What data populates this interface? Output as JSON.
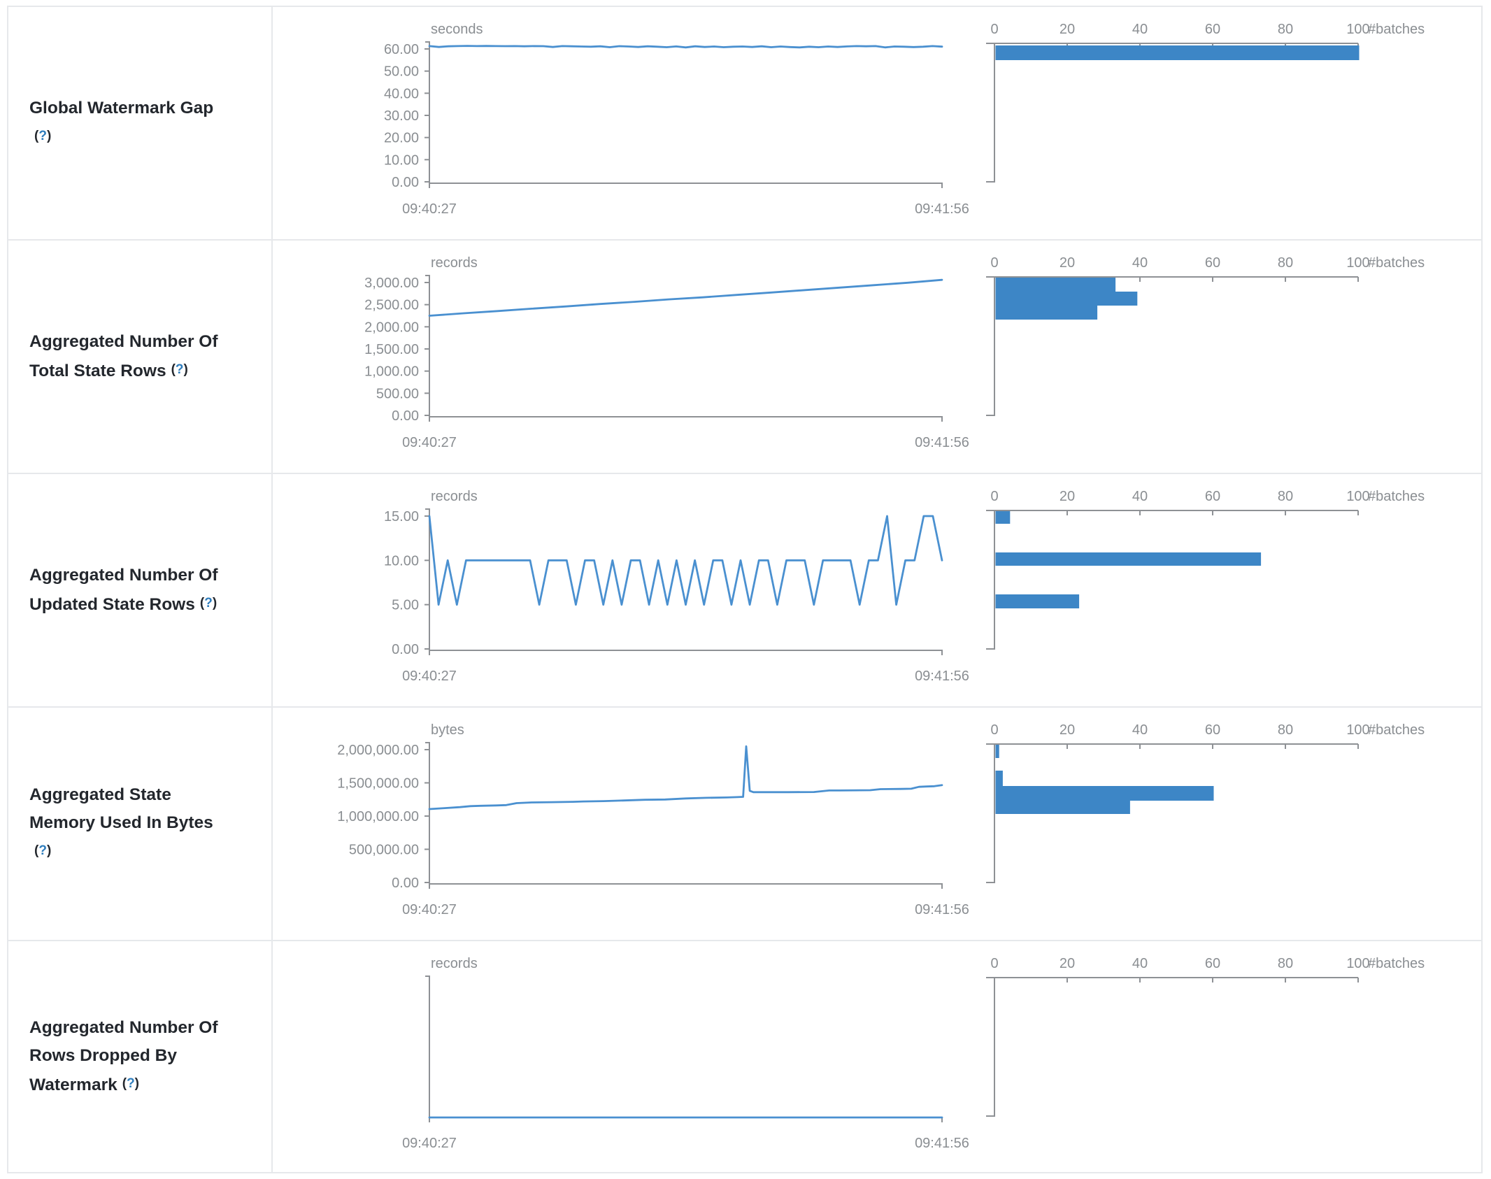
{
  "help": {
    "open": "(",
    "q": "?",
    "close": ")"
  },
  "colors": {
    "bar_blue": "#3d86c6",
    "line_blue": "#4a90d0",
    "axis_gray": "#8e9195",
    "tick_label_gray": "#8a8e92",
    "label_dark": "#23272d",
    "help_blue": "#2e7dbd",
    "border_gray": "#e6e8eb"
  },
  "x_axis": {
    "start": "09:40:27",
    "end": "09:41:56"
  },
  "hist_axis": {
    "unit": "#batches",
    "max": 100,
    "ticks": [
      {
        "v": 0,
        "label": "0"
      },
      {
        "v": 20,
        "label": "20"
      },
      {
        "v": 40,
        "label": "40"
      },
      {
        "v": 60,
        "label": "60"
      },
      {
        "v": 80,
        "label": "80"
      },
      {
        "v": 100,
        "label": "100"
      }
    ]
  },
  "chart_data": [
    {
      "type": "line+histogram",
      "label": "Global Watermark Gap\n",
      "unit": "seconds",
      "y_max": 60,
      "y_ticks": [
        {
          "v": 60,
          "label": "60.00"
        },
        {
          "v": 50,
          "label": "50.00"
        },
        {
          "v": 40,
          "label": "40.00"
        },
        {
          "v": 30,
          "label": "30.00"
        },
        {
          "v": 20,
          "label": "20.00"
        },
        {
          "v": 10,
          "label": "10.00"
        },
        {
          "v": 0,
          "label": "0.00"
        }
      ],
      "series": {
        "values": [
          61.3,
          60.9,
          61.2,
          61.3,
          61.4,
          61.3,
          61.35,
          61.3,
          61.25,
          61.3,
          61.2,
          61.3,
          61.25,
          60.9,
          61.3,
          61.2,
          61.1,
          61.0,
          61.2,
          60.8,
          61.25,
          61.1,
          60.9,
          61.2,
          61.0,
          60.8,
          61.15,
          60.7,
          61.2,
          60.9,
          61.1,
          60.8,
          61.0,
          61.1,
          60.9,
          61.2,
          60.8,
          61.1,
          60.85,
          60.7,
          61.0,
          60.8,
          61.1,
          60.9,
          61.15,
          61.3,
          61.2,
          61.3,
          60.7,
          61.1,
          61.0,
          60.85,
          61.0,
          61.3,
          61.05
        ]
      },
      "histogram": {
        "bars": [
          {
            "count": 100,
            "bin": "60.5 - 61.6 s",
            "y": 3,
            "h": 21
          }
        ]
      }
    },
    {
      "type": "line+histogram",
      "label": "Aggregated Number Of\nTotal State Rows",
      "unit": "records",
      "y_max": 3000,
      "y_ticks": [
        {
          "v": 3000,
          "label": "3,000.00"
        },
        {
          "v": 2500,
          "label": "2,500.00"
        },
        {
          "v": 2000,
          "label": "2,000.00"
        },
        {
          "v": 1500,
          "label": "1,500.00"
        },
        {
          "v": 1000,
          "label": "1,000.00"
        },
        {
          "v": 500,
          "label": "500.00"
        },
        {
          "v": 0,
          "label": "0.00"
        }
      ],
      "series": {
        "values": [
          2250,
          2305,
          2355,
          2410,
          2460,
          2515,
          2565,
          2620,
          2665,
          2720,
          2775,
          2830,
          2885,
          2940,
          2995,
          3060
        ]
      },
      "histogram": {
        "bars": [
          {
            "count": 33,
            "bin": "2,788 - 3,055",
            "y": 1,
            "h": 20
          },
          {
            "count": 39,
            "bin": "2,522 - 2,788",
            "y": 21,
            "h": 20
          },
          {
            "count": 28,
            "bin": "2,255 - 2,522",
            "y": 41,
            "h": 20
          }
        ]
      }
    },
    {
      "type": "line+histogram",
      "label": "Aggregated Number Of\nUpdated State Rows",
      "unit": "records",
      "y_max": 15,
      "y_ticks": [
        {
          "v": 15,
          "label": "15.00"
        },
        {
          "v": 10,
          "label": "10.00"
        },
        {
          "v": 5,
          "label": "5.00"
        },
        {
          "v": 0,
          "label": "0.00"
        }
      ],
      "series": {
        "values": [
          15,
          5,
          10,
          5,
          10,
          10,
          10,
          10,
          10,
          10,
          10,
          10,
          5,
          10,
          10,
          10,
          5,
          10,
          10,
          5,
          10,
          5,
          10,
          10,
          5,
          10,
          5,
          10,
          5,
          10,
          5,
          10,
          10,
          5,
          10,
          5,
          10,
          10,
          5,
          10,
          10,
          10,
          5,
          10,
          10,
          10,
          10,
          5,
          10,
          10,
          15,
          5,
          10,
          10,
          15,
          15,
          10
        ]
      },
      "histogram": {
        "bars": [
          {
            "count": 4,
            "bin": "15",
            "y": 1,
            "h": 18
          },
          {
            "count": 73,
            "bin": "10",
            "y": 60,
            "h": 19
          },
          {
            "count": 23,
            "bin": "5",
            "y": 120,
            "h": 20
          }
        ]
      }
    },
    {
      "type": "line+histogram",
      "label": "Aggregated State\nMemory Used In Bytes\n",
      "unit": "bytes",
      "y_max": 2000000,
      "y_ticks": [
        {
          "v": 2000000,
          "label": "2,000,000.00"
        },
        {
          "v": 1500000,
          "label": "1,500,000.00"
        },
        {
          "v": 1000000,
          "label": "1,000,000.00"
        },
        {
          "v": 500000,
          "label": "500,000.00"
        },
        {
          "v": 0,
          "label": "0.00"
        }
      ],
      "series": {
        "points": [
          [
            0,
            1105000
          ],
          [
            0.03,
            1120000
          ],
          [
            0.06,
            1135000
          ],
          [
            0.08,
            1150000
          ],
          [
            0.1,
            1155000
          ],
          [
            0.13,
            1160000
          ],
          [
            0.15,
            1165000
          ],
          [
            0.17,
            1195000
          ],
          [
            0.2,
            1205000
          ],
          [
            0.24,
            1210000
          ],
          [
            0.28,
            1215000
          ],
          [
            0.3,
            1220000
          ],
          [
            0.34,
            1225000
          ],
          [
            0.38,
            1235000
          ],
          [
            0.42,
            1245000
          ],
          [
            0.46,
            1250000
          ],
          [
            0.5,
            1265000
          ],
          [
            0.54,
            1275000
          ],
          [
            0.58,
            1280000
          ],
          [
            0.6,
            1285000
          ],
          [
            0.612,
            1290000
          ],
          [
            0.618,
            2050000
          ],
          [
            0.625,
            1380000
          ],
          [
            0.632,
            1360000
          ],
          [
            0.65,
            1360000
          ],
          [
            0.7,
            1360000
          ],
          [
            0.75,
            1362000
          ],
          [
            0.78,
            1385000
          ],
          [
            0.8,
            1385000
          ],
          [
            0.84,
            1388000
          ],
          [
            0.86,
            1390000
          ],
          [
            0.88,
            1405000
          ],
          [
            0.92,
            1408000
          ],
          [
            0.94,
            1412000
          ],
          [
            0.955,
            1440000
          ],
          [
            0.97,
            1445000
          ],
          [
            0.985,
            1450000
          ],
          [
            1,
            1465000
          ]
        ]
      },
      "histogram": {
        "bars": [
          {
            "count": 1,
            "bin": "~ 2,050,000",
            "y": 1,
            "h": 19
          },
          {
            "count": 2,
            "bin": "~ 1,600,000",
            "y": 38,
            "h": 22
          },
          {
            "count": 60,
            "bin": "1,300,000 - 1,470,000",
            "y": 60,
            "h": 21
          },
          {
            "count": 37,
            "bin": "1,100,000 - 1,300,000",
            "y": 81,
            "h": 19
          }
        ]
      }
    },
    {
      "type": "line+histogram",
      "label": "Aggregated Number Of\nRows Dropped By\nWatermark",
      "unit": "records",
      "y_max": null,
      "y_ticks": [],
      "series": {
        "values": [
          0,
          0
        ]
      },
      "histogram": {
        "bars": []
      }
    }
  ]
}
